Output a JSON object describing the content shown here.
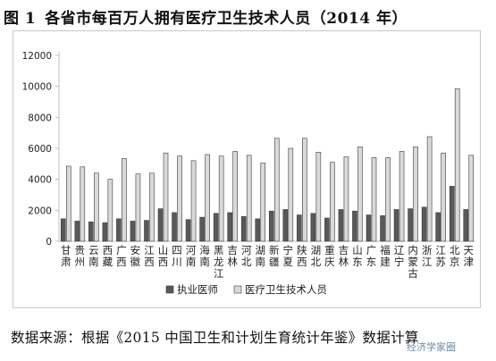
{
  "figure": {
    "number": "图 1",
    "title": "各省市每百万人拥有医疗卫生技术人员（2014 年）"
  },
  "source_note": "数据来源：根据《2015 中国卫生和计划生育统计年鉴》数据计算",
  "watermark": "经济学家圈",
  "colors": {
    "series_doctor": "#595959",
    "series_tech": "#d9d9d9",
    "bar_stroke": "#3a3a3a",
    "axis": "#bfbfbf",
    "text": "#222222"
  },
  "chart_data": {
    "type": "bar",
    "title": "",
    "xlabel": "",
    "ylabel": "",
    "ylim": [
      0,
      12000
    ],
    "yticks": [
      0,
      2000,
      4000,
      6000,
      8000,
      10000,
      12000
    ],
    "grid": false,
    "legend_position": "bottom",
    "categories": [
      "甘肃",
      "贵州",
      "云南",
      "西藏",
      "广西",
      "安徽",
      "江西",
      "山西",
      "四川",
      "河南",
      "海南",
      "黑龙江",
      "吉林",
      "河北",
      "湖南",
      "新疆",
      "宁夏",
      "陕西",
      "湖北",
      "重庆",
      "吉林",
      "山东",
      "广东",
      "福建",
      "辽宁",
      "内蒙古",
      "浙江",
      "江苏",
      "北京",
      "天津"
    ],
    "series": [
      {
        "name": "执业医师",
        "values": [
          1450,
          1300,
          1250,
          1200,
          1450,
          1300,
          1350,
          2100,
          1850,
          1400,
          1550,
          1800,
          1850,
          1600,
          1450,
          1950,
          2050,
          1700,
          1800,
          1500,
          2050,
          1950,
          1700,
          1650,
          2050,
          2100,
          2200,
          1850,
          3550,
          2050
        ]
      },
      {
        "name": "医疗卫生技术人员",
        "values": [
          4850,
          4800,
          4400,
          4000,
          5350,
          4350,
          4400,
          5700,
          5500,
          5200,
          5600,
          5500,
          5800,
          5550,
          5050,
          6650,
          6000,
          6650,
          5750,
          5100,
          5450,
          6100,
          5400,
          5400,
          5800,
          6100,
          6750,
          5700,
          9850,
          5550
        ]
      }
    ]
  }
}
